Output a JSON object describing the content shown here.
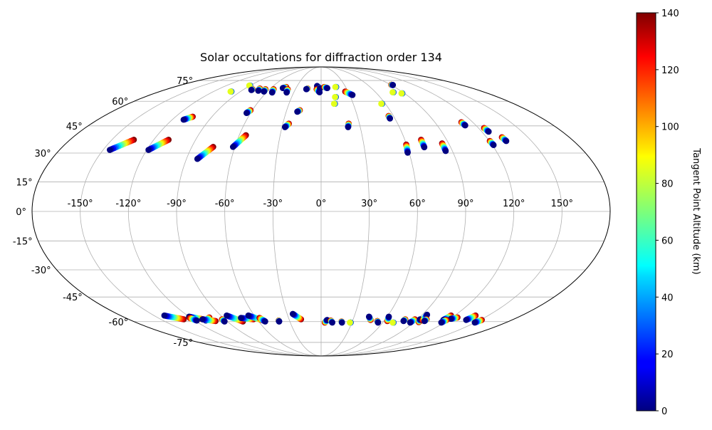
{
  "chart_data": {
    "type": "scatter",
    "projection": "mollweide",
    "title": "Solar occultations for diffraction order 134",
    "xlabel": "",
    "ylabel": "",
    "grid": true,
    "lon_ticks": [
      -150,
      -120,
      -90,
      -60,
      -30,
      0,
      30,
      60,
      90,
      120,
      150
    ],
    "lon_tick_labels": [
      "-150°",
      "-120°",
      "-90°",
      "-60°",
      "-30°",
      "0°",
      "30°",
      "60°",
      "90°",
      "120°",
      "150°"
    ],
    "lat_ticks": [
      -75,
      -60,
      -45,
      -30,
      -15,
      0,
      15,
      30,
      45,
      60,
      75
    ],
    "lat_tick_labels": [
      "-75°",
      "-60°",
      "-45°",
      "-30°",
      "-15°",
      "0°",
      "15°",
      "30°",
      "45°",
      "60°",
      "75°"
    ],
    "colorbar": {
      "label": "Tangent Point Altitude (km)",
      "colormap": "jet",
      "range": [
        0,
        140
      ],
      "ticks": [
        0,
        20,
        40,
        60,
        80,
        100,
        120,
        140
      ],
      "tick_labels": [
        "0",
        "20",
        "40",
        "60",
        "80",
        "100",
        "120",
        "140"
      ]
    },
    "tracks": [
      {
        "start": [
          -145.4,
          31.7
        ],
        "end": [
          -134.3,
          37.2
        ]
      },
      {
        "start": [
          -118.8,
          31.7
        ],
        "end": [
          -109.4,
          37.2
        ]
      },
      {
        "start": [
          -110.8,
          48.6
        ],
        "end": [
          -105.9,
          50.4
        ]
      },
      {
        "start": [
          -100.5,
          66.6
        ],
        "end": [
          -100.5,
          66.6
        ]
      },
      {
        "start": [
          -90.5,
          71.0
        ],
        "end": [
          -90.5,
          71.0
        ]
      },
      {
        "start": [
          -80.1,
          67.7
        ],
        "end": [
          -80.1,
          68.3
        ]
      },
      {
        "start": [
          -82.7,
          26.9
        ],
        "end": [
          -75.1,
          33.3
        ]
      },
      {
        "start": [
          -71.2,
          67.2
        ],
        "end": [
          -72.6,
          68.8
        ]
      },
      {
        "start": [
          -63.8,
          66.6
        ],
        "end": [
          -65.0,
          68.3
        ]
      },
      {
        "start": [
          -63.4,
          52.6
        ],
        "end": [
          -61.6,
          54.3
        ]
      },
      {
        "start": [
          -61.3,
          33.3
        ],
        "end": [
          -55.1,
          39.7
        ]
      },
      {
        "start": [
          -53.7,
          65.9
        ],
        "end": [
          -55.5,
          68.3
        ]
      },
      {
        "start": [
          -45.8,
          69.1
        ],
        "end": [
          -42.8,
          69.9
        ]
      },
      {
        "start": [
          -37.8,
          65.9
        ],
        "end": [
          -39.0,
          68.3
        ]
      },
      {
        "start": [
          -27.7,
          44.3
        ],
        "end": [
          -25.3,
          46.3
        ]
      },
      {
        "start": [
          -20.5,
          53.4
        ],
        "end": [
          -18.6,
          54.3
        ]
      },
      {
        "start": [
          -17.3,
          68.3
        ],
        "end": [
          -16.1,
          68.8
        ]
      },
      {
        "start": [
          -5.1,
          70.7
        ],
        "end": [
          -1.6,
          69.1
        ]
      },
      {
        "start": [
          -1.7,
          66.1
        ],
        "end": [
          -5.2,
          68.3
        ]
      },
      {
        "start": [
          -1.3,
          68.9
        ],
        "end": [
          -1.3,
          69.1
        ]
      },
      {
        "start": [
          7.4,
          69.1
        ],
        "end": [
          3.9,
          69.9
        ]
      },
      {
        "start": [
          12.5,
          58.4
        ],
        "end": [
          12.5,
          58.4
        ]
      },
      {
        "start": [
          14.6,
          62.8
        ],
        "end": [
          14.6,
          62.8
        ]
      },
      {
        "start": [
          17.9,
          69.9
        ],
        "end": [
          17.9,
          69.9
        ]
      },
      {
        "start": [
          20.7,
          44.3
        ],
        "end": [
          21.6,
          46.3
        ]
      },
      {
        "start": [
          33.0,
          64.2
        ],
        "end": [
          26.9,
          66.6
        ]
      },
      {
        "start": [
          56.6,
          58.4
        ],
        "end": [
          56.6,
          58.4
        ]
      },
      {
        "start": [
          56.0,
          49.3
        ],
        "end": [
          56.0,
          50.8
        ]
      },
      {
        "start": [
          59.0,
          30.2
        ],
        "end": [
          59.8,
          34.6
        ]
      },
      {
        "start": [
          71.7,
          33.1
        ],
        "end": [
          71.7,
          37.2
        ]
      },
      {
        "start": [
          79.2,
          66.1
        ],
        "end": [
          79.2,
          66.1
        ]
      },
      {
        "start": [
          87.2,
          65.3
        ],
        "end": [
          87.2,
          65.3
        ]
      },
      {
        "start": [
          85.4,
          31.1
        ],
        "end": [
          85.4,
          35.2
        ]
      },
      {
        "start": [
          92.2,
          71.4
        ],
        "end": [
          90.8,
          71.6
        ]
      },
      {
        "start": [
          111.7,
          45.3
        ],
        "end": [
          111.0,
          47.1
        ]
      },
      {
        "start": [
          120.9,
          34.3
        ],
        "end": [
          120.3,
          36.5
        ]
      },
      {
        "start": [
          125.1,
          41.7
        ],
        "end": [
          124.3,
          43.8
        ]
      },
      {
        "start": [
          132.0,
          36.5
        ],
        "end": [
          131.2,
          38.6
        ]
      },
      {
        "start": [
          -140.7,
          -56.1
        ],
        "end": [
          -128.5,
          -58.5
        ]
      },
      {
        "start": [
          -119.9,
          -56.8
        ],
        "end": [
          -109.9,
          -58.5
        ]
      },
      {
        "start": [
          -118.0,
          -59.3
        ],
        "end": [
          -120.9,
          -57.6
        ]
      },
      {
        "start": [
          -109.5,
          -59.3
        ],
        "end": [
          -102.4,
          -57.3
        ]
      },
      {
        "start": [
          -92.7,
          -59.9
        ],
        "end": [
          -92.7,
          -58.5
        ]
      },
      {
        "start": [
          -111.0,
          -58.5
        ],
        "end": [
          -100.8,
          -59.6
        ]
      },
      {
        "start": [
          -84.7,
          -56.1
        ],
        "end": [
          -75.1,
          -59.9
        ]
      },
      {
        "start": [
          -73.8,
          -57.6
        ],
        "end": [
          -63.4,
          -58.5
        ]
      },
      {
        "start": [
          -65.3,
          -56.1
        ],
        "end": [
          -54.9,
          -59.3
        ]
      },
      {
        "start": [
          -53.7,
          -59.9
        ],
        "end": [
          -56.7,
          -57.6
        ]
      },
      {
        "start": [
          -40.3,
          -59.9
        ],
        "end": [
          -40.3,
          -59.3
        ]
      },
      {
        "start": [
          -25.0,
          -55.1
        ],
        "end": [
          -18.8,
          -58.5
        ]
      },
      {
        "start": [
          5.7,
          -58.9
        ],
        "end": [
          3.6,
          -60.6
        ]
      },
      {
        "start": [
          10.9,
          -60.6
        ],
        "end": [
          9.2,
          -59.3
        ]
      },
      {
        "start": [
          20.3,
          -60.6
        ],
        "end": [
          19.6,
          -59.9
        ]
      },
      {
        "start": [
          28.4,
          -60.6
        ],
        "end": [
          28.4,
          -60.6
        ]
      },
      {
        "start": [
          43.5,
          -56.8
        ],
        "end": [
          46.6,
          -58.9
        ]
      },
      {
        "start": [
          55.4,
          -60.6
        ],
        "end": [
          53.7,
          -59.6
        ]
      },
      {
        "start": [
          61.5,
          -56.8
        ],
        "end": [
          63.2,
          -59.6
        ]
      },
      {
        "start": [
          70.1,
          -60.6
        ],
        "end": [
          70.1,
          -60.6
        ]
      },
      {
        "start": [
          78.7,
          -59.6
        ],
        "end": [
          78.7,
          -58.5
        ]
      },
      {
        "start": [
          86.7,
          -60.6
        ],
        "end": [
          87.8,
          -58.5
        ]
      },
      {
        "start": [
          92.6,
          -58.5
        ],
        "end": [
          94.5,
          -60.3
        ]
      },
      {
        "start": [
          94.3,
          -55.6
        ],
        "end": [
          96.2,
          -59.3
        ]
      },
      {
        "start": [
          98.7,
          -59.6
        ],
        "end": [
          98.7,
          -58.5
        ]
      },
      {
        "start": [
          115.2,
          -58.9
        ],
        "end": [
          116.6,
          -56.1
        ]
      },
      {
        "start": [
          120.7,
          -58.2
        ],
        "end": [
          124.9,
          -57.3
        ]
      },
      {
        "start": [
          117.0,
          -60.6
        ],
        "end": [
          118.2,
          -58.9
        ]
      },
      {
        "start": [
          136.7,
          -58.9
        ],
        "end": [
          138.6,
          -56.1
        ]
      },
      {
        "start": [
          149.6,
          -60.6
        ],
        "end": [
          151.4,
          -58.9
        ]
      }
    ]
  }
}
